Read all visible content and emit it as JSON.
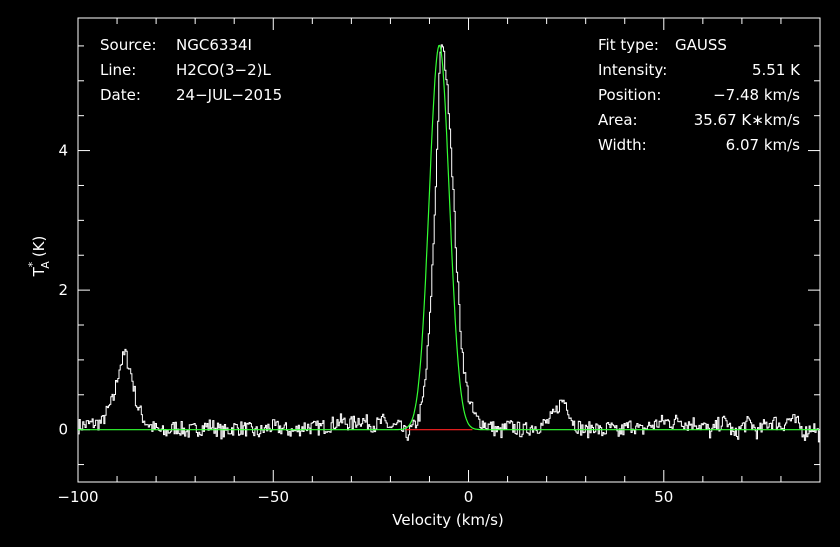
{
  "chart_data": {
    "type": "line",
    "xlabel": "Velocity (km/s)",
    "ylabel": "T",
    "ylabel_sup": "*",
    "ylabel_sub": "A",
    "ylabel_unit": "(K)",
    "xlim": [
      -100,
      90
    ],
    "ylim": [
      -0.75,
      5.9
    ],
    "xticks": [
      -100,
      -50,
      0,
      50
    ],
    "yticks": [
      0,
      2,
      4
    ],
    "info_left": [
      {
        "key": "Source:",
        "value": "NGC6334I"
      },
      {
        "key": "Line:",
        "value": "H2CO(3−2)L"
      },
      {
        "key": "Date:",
        "value": "24−JUL−2015"
      }
    ],
    "info_right": [
      {
        "key": "Fit type:",
        "value": "GAUSS"
      },
      {
        "key": "Intensity:",
        "value": "5.51 K"
      },
      {
        "key": "Position:",
        "value": "−7.48 km/s"
      },
      {
        "key": "Area:",
        "value": "35.67 K∗km/s"
      },
      {
        "key": "Width:",
        "value": "6.07 km/s"
      }
    ],
    "series": [
      {
        "color": "#ffffff",
        "x": [
          -100,
          -97,
          -94,
          -91,
          -89.5,
          -88,
          -86.5,
          -85,
          -83,
          -81,
          -78,
          -75,
          -72,
          -69,
          -66,
          -63,
          -60,
          -57,
          -54,
          -51,
          -48,
          -45,
          -42,
          -39,
          -36,
          -33,
          -30,
          -28,
          -26,
          -24,
          -22,
          -20,
          -18,
          -16,
          -14,
          -13,
          -12,
          -11,
          -10,
          -9,
          -8,
          -7.5,
          -7,
          -6,
          -5,
          -4,
          -3,
          -2,
          -1,
          0,
          1,
          2,
          4,
          6,
          8,
          10,
          12,
          14,
          16,
          18,
          20,
          22,
          23,
          24,
          25,
          26,
          27,
          28,
          30,
          32,
          34,
          36,
          38,
          40,
          42,
          44,
          46,
          48,
          50,
          52,
          54,
          56,
          58,
          60,
          62,
          64,
          66,
          68,
          70,
          72,
          74,
          76,
          78,
          80,
          82,
          84,
          86,
          88,
          90
        ],
        "y": [
          0.05,
          0.08,
          0.1,
          0.45,
          0.9,
          1.1,
          0.8,
          0.35,
          0.12,
          0.03,
          -0.05,
          0.04,
          -0.03,
          0.02,
          0.06,
          -0.04,
          0.03,
          0.01,
          -0.05,
          0.04,
          0.02,
          -0.03,
          0.05,
          0.02,
          0.06,
          0.12,
          0.08,
          0.15,
          0.1,
          0.06,
          0.12,
          0.03,
          0.05,
          -0.08,
          0.05,
          0.15,
          0.35,
          0.8,
          1.6,
          2.8,
          4.3,
          5.2,
          5.55,
          5.2,
          4.5,
          3.4,
          2.2,
          1.3,
          0.75,
          0.45,
          0.25,
          0.15,
          0.08,
          0.03,
          -0.04,
          0.05,
          0.02,
          -0.02,
          0.04,
          0.05,
          0.1,
          0.22,
          0.35,
          0.42,
          0.38,
          0.2,
          0.08,
          0.05,
          -0.03,
          0.06,
          -0.05,
          0.04,
          -0.06,
          0.02,
          0.07,
          -0.02,
          0.05,
          0.08,
          0.12,
          0.1,
          0.15,
          0.08,
          0.1,
          0.05,
          -0.05,
          0.08,
          0.12,
          -0.1,
          0.05,
          0.1,
          -0.05,
          0.08,
          0.12,
          0.05,
          0.15,
          0.1,
          -0.05,
          0.06,
          -0.1
        ]
      },
      {
        "color": "#33ff33",
        "type": "gaussian-fit",
        "amplitude": 5.51,
        "center": -7.48,
        "fwhm": 6.07,
        "x_range": [
          -100,
          90
        ]
      }
    ],
    "baseline_segment": {
      "color": "#ff2222",
      "x": [
        -16,
        1
      ],
      "y": 0
    }
  }
}
